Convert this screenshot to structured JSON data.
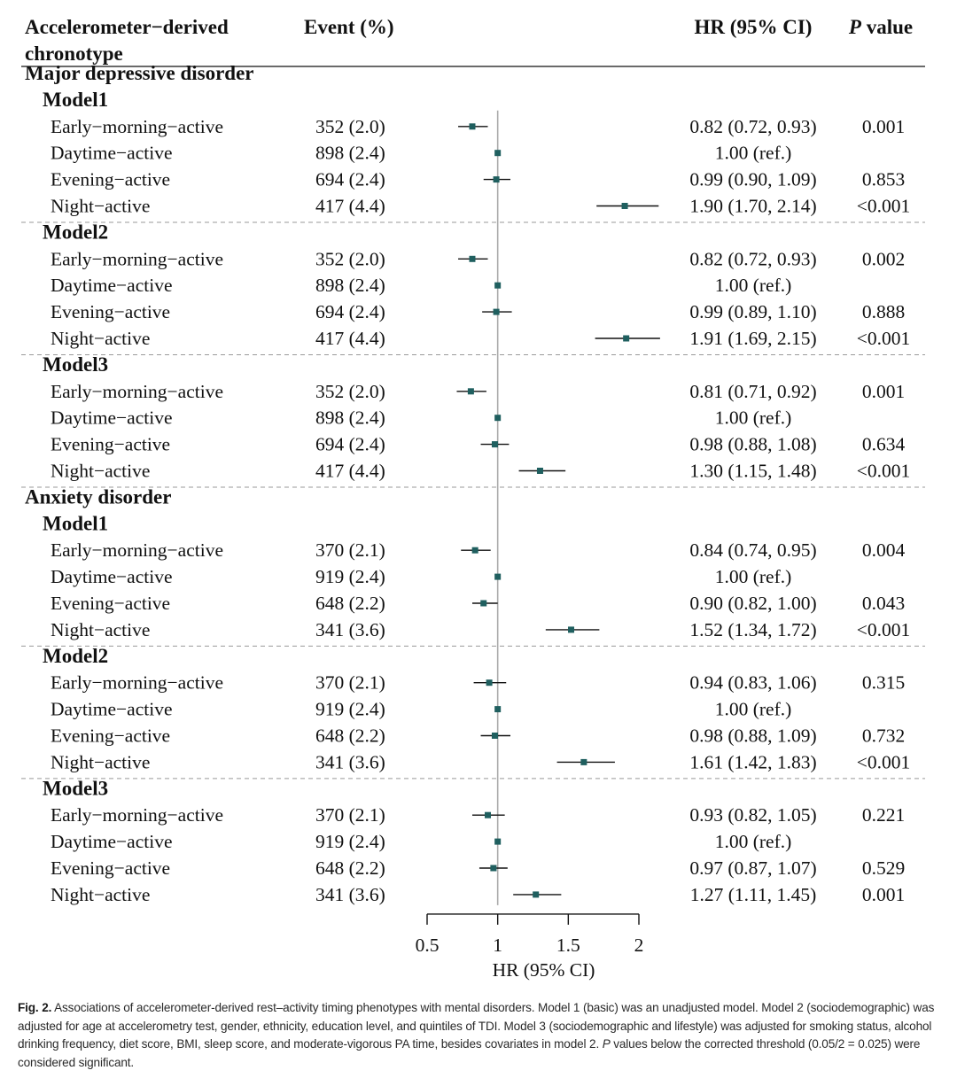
{
  "chart_data": {
    "type": "forest",
    "columns": {
      "chronotype_line1": "Accelerometer−derived",
      "chronotype_line2": "chronotype",
      "event": "Event (%)",
      "hr": "HR (95% CI)",
      "p_italic": "P",
      "p_rest": " value"
    },
    "xlabel": "HR (95% CI)",
    "xlim": [
      0.5,
      2
    ],
    "xticks": [
      0.5,
      1,
      1.5,
      2
    ],
    "xtick_labels": [
      "0.5",
      "1",
      "1.5",
      "2"
    ],
    "reference_line": 1,
    "marker_color": "#1f5f5f",
    "groups": [
      {
        "name": "Major depressive disorder",
        "models": [
          {
            "name": "Model1",
            "rows": [
              {
                "label": "Early−morning−active",
                "event": "352 (2.0)",
                "hr": 0.82,
                "lo": 0.72,
                "hi": 0.93,
                "hr_text": "0.82 (0.72, 0.93)",
                "p": "0.001"
              },
              {
                "label": "Daytime−active",
                "event": "898 (2.4)",
                "hr": 1.0,
                "lo": 1.0,
                "hi": 1.0,
                "hr_text": "1.00 (ref.)",
                "p": ""
              },
              {
                "label": "Evening−active",
                "event": "694 (2.4)",
                "hr": 0.99,
                "lo": 0.9,
                "hi": 1.09,
                "hr_text": "0.99 (0.90, 1.09)",
                "p": "0.853"
              },
              {
                "label": "Night−active",
                "event": "417 (4.4)",
                "hr": 1.9,
                "lo": 1.7,
                "hi": 2.14,
                "hr_text": "1.90 (1.70, 2.14)",
                "p": "<0.001"
              }
            ]
          },
          {
            "name": "Model2",
            "rows": [
              {
                "label": "Early−morning−active",
                "event": "352 (2.0)",
                "hr": 0.82,
                "lo": 0.72,
                "hi": 0.93,
                "hr_text": "0.82 (0.72, 0.93)",
                "p": "0.002"
              },
              {
                "label": "Daytime−active",
                "event": "898 (2.4)",
                "hr": 1.0,
                "lo": 1.0,
                "hi": 1.0,
                "hr_text": "1.00 (ref.)",
                "p": ""
              },
              {
                "label": "Evening−active",
                "event": "694 (2.4)",
                "hr": 0.99,
                "lo": 0.89,
                "hi": 1.1,
                "hr_text": "0.99 (0.89, 1.10)",
                "p": "0.888"
              },
              {
                "label": "Night−active",
                "event": "417 (4.4)",
                "hr": 1.91,
                "lo": 1.69,
                "hi": 2.15,
                "hr_text": "1.91 (1.69, 2.15)",
                "p": "<0.001"
              }
            ]
          },
          {
            "name": "Model3",
            "rows": [
              {
                "label": "Early−morning−active",
                "event": "352 (2.0)",
                "hr": 0.81,
                "lo": 0.71,
                "hi": 0.92,
                "hr_text": "0.81 (0.71, 0.92)",
                "p": "0.001"
              },
              {
                "label": "Daytime−active",
                "event": "898 (2.4)",
                "hr": 1.0,
                "lo": 1.0,
                "hi": 1.0,
                "hr_text": "1.00 (ref.)",
                "p": ""
              },
              {
                "label": "Evening−active",
                "event": "694 (2.4)",
                "hr": 0.98,
                "lo": 0.88,
                "hi": 1.08,
                "hr_text": "0.98 (0.88, 1.08)",
                "p": "0.634"
              },
              {
                "label": "Night−active",
                "event": "417 (4.4)",
                "hr": 1.3,
                "lo": 1.15,
                "hi": 1.48,
                "hr_text": "1.30 (1.15, 1.48)",
                "p": "<0.001"
              }
            ]
          }
        ]
      },
      {
        "name": "Anxiety disorder",
        "models": [
          {
            "name": "Model1",
            "rows": [
              {
                "label": "Early−morning−active",
                "event": "370 (2.1)",
                "hr": 0.84,
                "lo": 0.74,
                "hi": 0.95,
                "hr_text": "0.84 (0.74, 0.95)",
                "p": "0.004"
              },
              {
                "label": "Daytime−active",
                "event": "919 (2.4)",
                "hr": 1.0,
                "lo": 1.0,
                "hi": 1.0,
                "hr_text": "1.00 (ref.)",
                "p": ""
              },
              {
                "label": "Evening−active",
                "event": "648 (2.2)",
                "hr": 0.9,
                "lo": 0.82,
                "hi": 1.0,
                "hr_text": "0.90 (0.82, 1.00)",
                "p": "0.043"
              },
              {
                "label": "Night−active",
                "event": "341 (3.6)",
                "hr": 1.52,
                "lo": 1.34,
                "hi": 1.72,
                "hr_text": "1.52 (1.34, 1.72)",
                "p": "<0.001"
              }
            ]
          },
          {
            "name": "Model2",
            "rows": [
              {
                "label": "Early−morning−active",
                "event": "370 (2.1)",
                "hr": 0.94,
                "lo": 0.83,
                "hi": 1.06,
                "hr_text": "0.94 (0.83, 1.06)",
                "p": "0.315"
              },
              {
                "label": "Daytime−active",
                "event": "919 (2.4)",
                "hr": 1.0,
                "lo": 1.0,
                "hi": 1.0,
                "hr_text": "1.00 (ref.)",
                "p": ""
              },
              {
                "label": "Evening−active",
                "event": "648 (2.2)",
                "hr": 0.98,
                "lo": 0.88,
                "hi": 1.09,
                "hr_text": "0.98 (0.88, 1.09)",
                "p": "0.732"
              },
              {
                "label": "Night−active",
                "event": "341 (3.6)",
                "hr": 1.61,
                "lo": 1.42,
                "hi": 1.83,
                "hr_text": "1.61 (1.42, 1.83)",
                "p": "<0.001"
              }
            ]
          },
          {
            "name": "Model3",
            "rows": [
              {
                "label": "Early−morning−active",
                "event": "370 (2.1)",
                "hr": 0.93,
                "lo": 0.82,
                "hi": 1.05,
                "hr_text": "0.93 (0.82, 1.05)",
                "p": "0.221"
              },
              {
                "label": "Daytime−active",
                "event": "919 (2.4)",
                "hr": 1.0,
                "lo": 1.0,
                "hi": 1.0,
                "hr_text": "1.00 (ref.)",
                "p": ""
              },
              {
                "label": "Evening−active",
                "event": "648 (2.2)",
                "hr": 0.97,
                "lo": 0.87,
                "hi": 1.07,
                "hr_text": "0.97 (0.87, 1.07)",
                "p": "0.529"
              },
              {
                "label": "Night−active",
                "event": "341 (3.6)",
                "hr": 1.27,
                "lo": 1.11,
                "hi": 1.45,
                "hr_text": "1.27 (1.11, 1.45)",
                "p": "0.001"
              }
            ]
          }
        ]
      }
    ]
  },
  "caption": {
    "label": "Fig. 2.",
    "part1": " Associations of accelerometer-derived rest–activity timing phenotypes with mental disorders. Model 1 (basic) was an unadjusted model. Model 2 (sociodemographic) was adjusted for age at accelerometry test, gender, ethnicity, education level, and quintiles of TDI. Model 3 (sociodemographic and lifestyle) was adjusted for smoking status, alcohol drinking frequency, diet score, BMI, sleep score, and moderate-vigorous PA time, besides covariates in model 2. ",
    "p_italic": "P",
    "part2": " values below the corrected threshold (0.05/2 = 0.025) were considered significant."
  }
}
